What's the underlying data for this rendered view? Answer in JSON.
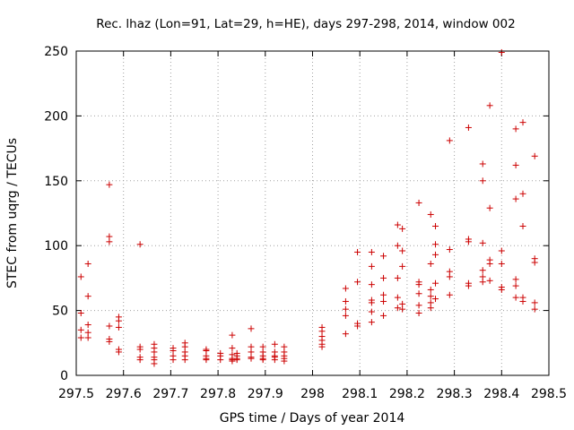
{
  "chart_data": {
    "type": "scatter",
    "title": "Rec. lhaz (Lon=91, Lat=29, h=HE), days 297-298, 2014, window 002",
    "xlabel": "GPS time / Days of year 2014",
    "ylabel": "STEC from uqrg / TECUs",
    "xlim": [
      297.5,
      298.5
    ],
    "ylim": [
      0,
      250
    ],
    "grid": true,
    "marker": "+",
    "color": "#cc0000",
    "x_ticks": [
      297.5,
      297.6,
      297.7,
      297.8,
      297.9,
      298,
      298.1,
      298.2,
      298.3,
      298.4,
      298.5
    ],
    "x_tick_labels": [
      "297.5",
      "297.6",
      "297.7",
      "297.8",
      "297.9",
      "298",
      "298.1",
      "298.2",
      "298.3",
      "298.4",
      "298.5"
    ],
    "y_ticks": [
      0,
      50,
      100,
      150,
      200,
      250
    ],
    "y_tick_labels": [
      "0",
      "50",
      "100",
      "150",
      "200",
      "250"
    ],
    "points": [
      [
        297.51,
        76
      ],
      [
        297.51,
        48
      ],
      [
        297.51,
        35
      ],
      [
        297.51,
        29
      ],
      [
        297.525,
        86
      ],
      [
        297.525,
        61
      ],
      [
        297.525,
        39
      ],
      [
        297.525,
        33
      ],
      [
        297.525,
        29
      ],
      [
        297.57,
        147
      ],
      [
        297.57,
        107
      ],
      [
        297.57,
        103
      ],
      [
        297.57,
        38
      ],
      [
        297.57,
        28
      ],
      [
        297.57,
        26
      ],
      [
        297.59,
        45
      ],
      [
        297.59,
        42
      ],
      [
        297.59,
        37
      ],
      [
        297.59,
        20
      ],
      [
        297.59,
        18
      ],
      [
        297.635,
        101
      ],
      [
        297.635,
        22
      ],
      [
        297.635,
        20
      ],
      [
        297.635,
        14
      ],
      [
        297.635,
        12
      ],
      [
        297.665,
        24
      ],
      [
        297.665,
        21
      ],
      [
        297.665,
        18
      ],
      [
        297.665,
        14
      ],
      [
        297.665,
        12
      ],
      [
        297.665,
        9
      ],
      [
        297.705,
        21
      ],
      [
        297.705,
        19
      ],
      [
        297.705,
        15
      ],
      [
        297.705,
        12
      ],
      [
        297.73,
        25
      ],
      [
        297.73,
        22
      ],
      [
        297.73,
        18
      ],
      [
        297.73,
        15
      ],
      [
        297.73,
        12
      ],
      [
        297.775,
        20
      ],
      [
        297.775,
        19
      ],
      [
        297.775,
        15
      ],
      [
        297.775,
        13
      ],
      [
        297.775,
        12
      ],
      [
        297.805,
        17
      ],
      [
        297.805,
        15
      ],
      [
        297.805,
        12
      ],
      [
        297.83,
        31
      ],
      [
        297.83,
        21
      ],
      [
        297.83,
        16
      ],
      [
        297.83,
        13
      ],
      [
        297.83,
        12
      ],
      [
        297.83,
        11
      ],
      [
        297.84,
        17
      ],
      [
        297.84,
        15
      ],
      [
        297.84,
        13
      ],
      [
        297.84,
        12
      ],
      [
        297.87,
        36
      ],
      [
        297.87,
        22
      ],
      [
        297.87,
        18
      ],
      [
        297.87,
        14
      ],
      [
        297.87,
        13
      ],
      [
        297.895,
        22
      ],
      [
        297.895,
        18
      ],
      [
        297.895,
        15
      ],
      [
        297.895,
        13
      ],
      [
        297.895,
        12
      ],
      [
        297.92,
        24
      ],
      [
        297.92,
        18
      ],
      [
        297.92,
        15
      ],
      [
        297.92,
        14
      ],
      [
        297.92,
        12
      ],
      [
        297.94,
        22
      ],
      [
        297.94,
        18
      ],
      [
        297.94,
        15
      ],
      [
        297.94,
        13
      ],
      [
        297.94,
        11
      ],
      [
        298.02,
        37
      ],
      [
        298.02,
        34
      ],
      [
        298.02,
        30
      ],
      [
        298.02,
        27
      ],
      [
        298.02,
        24
      ],
      [
        298.02,
        22
      ],
      [
        298.07,
        67
      ],
      [
        298.07,
        57
      ],
      [
        298.07,
        51
      ],
      [
        298.07,
        46
      ],
      [
        298.07,
        32
      ],
      [
        298.095,
        95
      ],
      [
        298.095,
        72
      ],
      [
        298.095,
        40
      ],
      [
        298.095,
        38
      ],
      [
        298.125,
        95
      ],
      [
        298.125,
        84
      ],
      [
        298.125,
        70
      ],
      [
        298.125,
        58
      ],
      [
        298.125,
        56
      ],
      [
        298.125,
        49
      ],
      [
        298.125,
        41
      ],
      [
        298.15,
        92
      ],
      [
        298.15,
        75
      ],
      [
        298.15,
        62
      ],
      [
        298.15,
        57
      ],
      [
        298.15,
        46
      ],
      [
        298.18,
        116
      ],
      [
        298.18,
        100
      ],
      [
        298.18,
        75
      ],
      [
        298.18,
        60
      ],
      [
        298.18,
        52
      ],
      [
        298.19,
        113
      ],
      [
        298.19,
        96
      ],
      [
        298.19,
        84
      ],
      [
        298.19,
        55
      ],
      [
        298.19,
        51
      ],
      [
        298.225,
        133
      ],
      [
        298.225,
        72
      ],
      [
        298.225,
        70
      ],
      [
        298.225,
        63
      ],
      [
        298.225,
        54
      ],
      [
        298.225,
        48
      ],
      [
        298.25,
        124
      ],
      [
        298.25,
        86
      ],
      [
        298.25,
        66
      ],
      [
        298.25,
        61
      ],
      [
        298.25,
        56
      ],
      [
        298.25,
        52
      ],
      [
        298.26,
        115
      ],
      [
        298.26,
        101
      ],
      [
        298.26,
        93
      ],
      [
        298.26,
        71
      ],
      [
        298.26,
        59
      ],
      [
        298.29,
        181
      ],
      [
        298.29,
        97
      ],
      [
        298.29,
        80
      ],
      [
        298.29,
        76
      ],
      [
        298.29,
        62
      ],
      [
        298.33,
        191
      ],
      [
        298.33,
        105
      ],
      [
        298.33,
        103
      ],
      [
        298.33,
        71
      ],
      [
        298.33,
        69
      ],
      [
        298.36,
        163
      ],
      [
        298.36,
        150
      ],
      [
        298.36,
        102
      ],
      [
        298.36,
        81
      ],
      [
        298.36,
        76
      ],
      [
        298.36,
        72
      ],
      [
        298.375,
        208
      ],
      [
        298.375,
        129
      ],
      [
        298.375,
        89
      ],
      [
        298.375,
        86
      ],
      [
        298.375,
        73
      ],
      [
        298.4,
        249
      ],
      [
        298.4,
        96
      ],
      [
        298.4,
        86
      ],
      [
        298.4,
        68
      ],
      [
        298.4,
        66
      ],
      [
        298.43,
        190
      ],
      [
        298.43,
        162
      ],
      [
        298.43,
        136
      ],
      [
        298.43,
        74
      ],
      [
        298.43,
        69
      ],
      [
        298.43,
        60
      ],
      [
        298.445,
        195
      ],
      [
        298.445,
        140
      ],
      [
        298.445,
        115
      ],
      [
        298.445,
        60
      ],
      [
        298.445,
        57
      ],
      [
        298.47,
        169
      ],
      [
        298.47,
        90
      ],
      [
        298.47,
        87
      ],
      [
        298.47,
        56
      ],
      [
        298.47,
        51
      ]
    ]
  }
}
